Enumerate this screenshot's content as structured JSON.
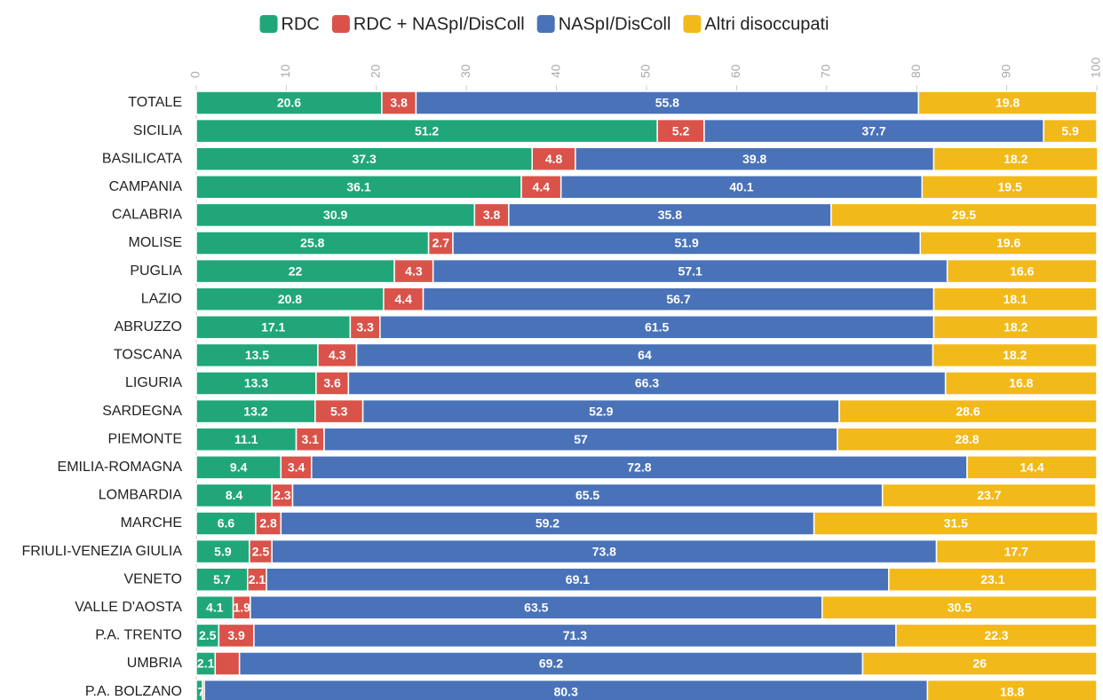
{
  "chart_data": {
    "type": "stacked-bar-horizontal",
    "categories": [
      "TOTALE",
      "SICILIA",
      "BASILICATA",
      "CAMPANIA",
      "CALABRIA",
      "MOLISE",
      "PUGLIA",
      "LAZIO",
      "ABRUZZO",
      "TOSCANA",
      "LIGURIA",
      "SARDEGNA",
      "PIEMONTE",
      "EMILIA-ROMAGNA",
      "LOMBARDIA",
      "MARCHE",
      "FRIULI-VENEZIA GIULIA",
      "VENETO",
      "VALLE D'AOSTA",
      "P.A. TRENTO",
      "UMBRIA",
      "P.A. BOLZANO"
    ],
    "series": [
      {
        "name": "RDC",
        "color": "#21a67a",
        "values": [
          20.6,
          51.2,
          37.3,
          36.1,
          30.9,
          25.8,
          22,
          20.8,
          17.1,
          13.5,
          13.3,
          13.2,
          11.1,
          9.4,
          8.4,
          6.6,
          5.9,
          5.7,
          4.1,
          2.5,
          2.1,
          0.7
        ],
        "value_labels": [
          "20.6",
          "51.2",
          "37.3",
          "36.1",
          "30.9",
          "25.8",
          "22",
          "20.8",
          "17.1",
          "13.5",
          "13.3",
          "13.2",
          "11.1",
          "9.4",
          "8.4",
          "6.6",
          "5.9",
          "5.7",
          "4.1",
          "2.5",
          "2.1",
          ".7"
        ]
      },
      {
        "name": "RDC + NASpI/DisColl",
        "color": "#d9534a",
        "values": [
          3.8,
          5.2,
          4.8,
          4.4,
          3.8,
          2.7,
          4.3,
          4.4,
          3.3,
          4.3,
          3.6,
          5.3,
          3.1,
          3.4,
          2.3,
          2.8,
          2.5,
          2.1,
          1.9,
          3.9,
          2.7,
          0.2
        ],
        "value_labels": [
          "3.8",
          "5.2",
          "4.8",
          "4.4",
          "3.8",
          "2.7",
          "4.3",
          "4.4",
          "3.3",
          "4.3",
          "3.6",
          "5.3",
          "3.1",
          "3.4",
          "2.3",
          "2.8",
          "2.5",
          "2.1",
          "1.9",
          "3.9",
          null,
          null
        ]
      },
      {
        "name": "NASpI/DisColl",
        "color": "#4a72b8",
        "values": [
          55.8,
          37.7,
          39.8,
          40.1,
          35.8,
          51.9,
          57.1,
          56.7,
          61.5,
          64,
          66.3,
          52.9,
          57,
          72.8,
          65.5,
          59.2,
          73.8,
          69.1,
          63.5,
          71.3,
          69.2,
          80.3
        ],
        "value_labels": [
          "55.8",
          "37.7",
          "39.8",
          "40.1",
          "35.8",
          "51.9",
          "57.1",
          "56.7",
          "61.5",
          "64",
          "66.3",
          "52.9",
          "57",
          "72.8",
          "65.5",
          "59.2",
          "73.8",
          "69.1",
          "63.5",
          "71.3",
          "69.2",
          "80.3"
        ]
      },
      {
        "name": "Altri disoccupati",
        "color": "#f2b91b",
        "values": [
          19.8,
          5.9,
          18.2,
          19.5,
          29.5,
          19.6,
          16.6,
          18.1,
          18.2,
          18.2,
          16.8,
          28.6,
          28.8,
          14.4,
          23.7,
          31.5,
          17.7,
          23.1,
          30.5,
          22.3,
          26,
          18.8
        ],
        "value_labels": [
          "19.8",
          "5.9",
          "18.2",
          "19.5",
          "29.5",
          "19.6",
          "16.6",
          "18.1",
          "18.2",
          "18.2",
          "16.8",
          "28.6",
          "28.8",
          "14.4",
          "23.7",
          "31.5",
          "17.7",
          "23.1",
          "30.5",
          "22.3",
          "26",
          "18.8"
        ]
      }
    ],
    "xlim": [
      0,
      100
    ],
    "xticks": [
      0,
      10,
      20,
      30,
      40,
      50,
      60,
      70,
      80,
      90,
      100
    ],
    "legend": "top"
  }
}
